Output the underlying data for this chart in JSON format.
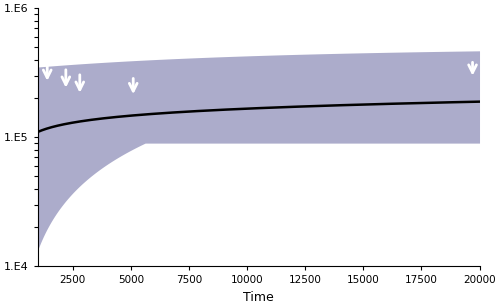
{
  "xlim": [
    1000,
    20000
  ],
  "ylim_log": [
    10000.0,
    1000000.0
  ],
  "xticks": [
    2500,
    5000,
    7500,
    10000,
    12500,
    15000,
    17500,
    20000
  ],
  "yticks": [
    10000.0,
    100000.0,
    1000000.0
  ],
  "ytick_labels": [
    "1.E4",
    "1.E5",
    "1.E6"
  ],
  "xlabel": "Time",
  "bg_color": "#f5f5f5",
  "fill_color": "#8080b0",
  "fill_alpha": 0.65,
  "line_color": "#000000",
  "arrow_color": "#ffffff",
  "arrow_positions_x": [
    1400,
    2200,
    2800,
    5100,
    19700
  ],
  "arrow_positions_y_log": [
    250000.0,
    250000.0,
    250000.0,
    250000.0,
    250000.0
  ]
}
